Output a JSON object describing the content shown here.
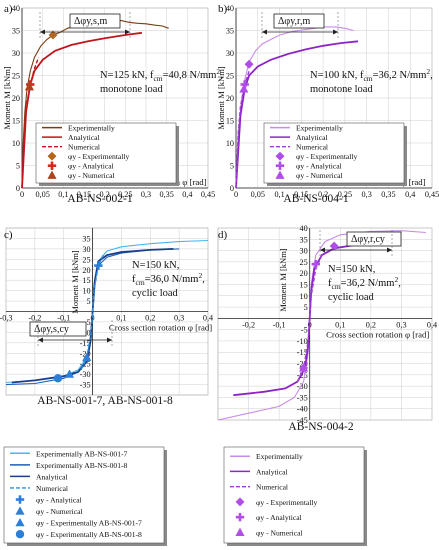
{
  "figure": {
    "panels": [
      {
        "letter": "a)",
        "caption": "AB-NS-002-1",
        "ylabel": "Moment M [kNm]",
        "xlabel": "Cross section rotation φ [rad]",
        "delta_label": "Δφy,s,m",
        "annotation": [
          "N=125 kN, f",
          "cm",
          "=40,8 N/mm",
          "2",
          ",",
          "monotone load"
        ]
      },
      {
        "letter": "b)",
        "caption": "AB-NS-004-1",
        "ylabel": "Moment M [kNm]",
        "xlabel": "Cross section rotation φ [rad]",
        "delta_label": "Δφy,r,m",
        "annotation": [
          "N=100 kN, f",
          "cm",
          "=36,2 N/mm",
          "2",
          ",",
          "monotone load"
        ]
      },
      {
        "letter": "c)",
        "caption": "AB-NS-001-7, AB-NS-001-8",
        "ylabel": "Moment M [kNm]",
        "xlabel": "Cross section rotation φ [rad]",
        "delta_label": "Δφy,s,cy",
        "annotation": [
          "N=150 kN,",
          "f",
          "cm",
          "=36,0 N/mm",
          "2",
          ",",
          "cyclic load"
        ]
      },
      {
        "letter": "d)",
        "caption": "AB-NS-004-2",
        "ylabel": "Moment M [kNm]",
        "xlabel": "Cross section rotation φ [rad]",
        "delta_label": "Δφy,r,cy",
        "annotation": [
          "N=150 kN,",
          "f",
          "cm",
          "=36,2 N/mm",
          "2",
          ",",
          "cyclic load"
        ]
      }
    ],
    "legends": {
      "a": [
        "Experimentally",
        "Analytical",
        "Numerical",
        "φy - Experimentally",
        "φy - Analytical",
        "φy - Numerical"
      ],
      "b": [
        "Experimentally",
        "Analytical",
        "Numerical",
        "φy - Experimentally",
        "φy - Analytical",
        "φy - Numerical"
      ],
      "c": [
        "Experimentally AB-NS-001-7",
        "Experimentally AB-NS-001-8",
        "Analytical",
        "Numerical",
        "φy - Analytical",
        "φy - Numerical",
        "φy - Experimentally AB-NS-001-7",
        "φy - Experimentally AB-NS-001-8"
      ],
      "d": [
        "Experimentally",
        "Analytical",
        "Numerical",
        "φy - Experimentally",
        "φy - Analytical",
        "φy - Numerical"
      ]
    }
  },
  "chart_data": [
    {
      "type": "line",
      "panel": "a",
      "xlim": [
        0,
        0.45
      ],
      "ylim": [
        0,
        40
      ],
      "xticks": [
        0,
        0.05,
        0.1,
        0.15,
        0.2,
        0.25,
        0.3,
        0.35,
        0.4,
        0.45
      ],
      "xtick_labels": [
        "0",
        "0,05",
        "0,1",
        "0,15",
        "0,2",
        "0,25",
        "0,3",
        "0,35",
        "0,4",
        "0,45"
      ],
      "yticks": [
        0,
        5,
        10,
        15,
        20,
        25,
        30,
        35,
        40
      ],
      "ytick_labels": [
        "0",
        "5",
        "10",
        "15",
        "20",
        "25",
        "30",
        "35",
        "40"
      ],
      "grid": true,
      "colors": {
        "experimental": "#7b3b12",
        "analytical": "#c0161b",
        "numerical": "#c0161b",
        "marker_exp": "#b5651d",
        "marker_ana": "#d42a1c",
        "marker_num": "#a8471b"
      },
      "series": [
        {
          "name": "Experimentally",
          "style": "solid",
          "x": [
            0,
            0.003,
            0.007,
            0.012,
            0.02,
            0.03,
            0.045,
            0.06,
            0.075,
            0.09,
            0.11,
            0.13,
            0.15,
            0.17,
            0.2,
            0.22,
            0.24,
            0.26,
            0.28,
            0.3,
            0.32,
            0.34,
            0.355
          ],
          "y": [
            0,
            10,
            17,
            22,
            26,
            29,
            31.5,
            33,
            34,
            34.5,
            35.5,
            36,
            36.5,
            36.8,
            37,
            37.3,
            37.2,
            36.8,
            36.6,
            36.5,
            36.2,
            36,
            35.5
          ]
        },
        {
          "name": "Analytical",
          "style": "solid",
          "x": [
            0,
            0.01,
            0.02,
            0.03,
            0.05,
            0.08,
            0.12,
            0.16,
            0.2,
            0.25,
            0.29
          ],
          "y": [
            0,
            17,
            23,
            26,
            28.5,
            30.5,
            31.8,
            32.6,
            33.3,
            34,
            34.5
          ]
        },
        {
          "name": "Numerical",
          "style": "dashed",
          "x": [
            0,
            0.005,
            0.01,
            0.02,
            0.03,
            0.04
          ],
          "y": [
            0,
            12,
            18,
            23,
            26.5,
            29
          ]
        }
      ],
      "yield_points": [
        {
          "name": "φy - Experimentally",
          "marker": "diamond",
          "x": 0.075,
          "y": 34
        },
        {
          "name": "φy - Analytical",
          "marker": "cross",
          "x": 0.02,
          "y": 23
        },
        {
          "name": "φy - Numerical",
          "marker": "triangle",
          "x": 0.018,
          "y": 22.5
        }
      ]
    },
    {
      "type": "line",
      "panel": "b",
      "xlim": [
        0,
        0.45
      ],
      "ylim": [
        0,
        40
      ],
      "xticks": [
        0,
        0.05,
        0.1,
        0.15,
        0.2,
        0.25,
        0.3,
        0.35,
        0.4,
        0.45
      ],
      "xtick_labels": [
        "0",
        "0,05",
        "0,1",
        "0,15",
        "0,2",
        "0,25",
        "0,3",
        "0,35",
        "0,4",
        "0,45"
      ],
      "yticks": [
        0,
        5,
        10,
        15,
        20,
        25,
        30,
        35,
        40
      ],
      "ytick_labels": [
        "0",
        "5",
        "10",
        "15",
        "20",
        "25",
        "30",
        "35",
        "40"
      ],
      "grid": true,
      "colors": {
        "experimental": "#c98bea",
        "analytical": "#8e24c8",
        "numerical": "#9c3fd6",
        "markers": "#b14de8"
      },
      "series": [
        {
          "name": "Experimentally",
          "style": "solid",
          "x": [
            0,
            0.005,
            0.012,
            0.02,
            0.03,
            0.045,
            0.06,
            0.08,
            0.1,
            0.13,
            0.16,
            0.2,
            0.23,
            0.25,
            0.27
          ],
          "y": [
            0,
            12,
            19,
            24,
            28,
            30.5,
            32,
            33,
            34,
            34.8,
            35.2,
            35.8,
            35.8,
            35.5,
            35
          ]
        },
        {
          "name": "Analytical",
          "style": "solid",
          "x": [
            0,
            0.01,
            0.02,
            0.03,
            0.05,
            0.08,
            0.12,
            0.16,
            0.2,
            0.24,
            0.28
          ],
          "y": [
            0,
            16,
            22,
            25,
            27,
            28.5,
            29.8,
            30.8,
            31.6,
            32.2,
            32.6
          ]
        },
        {
          "name": "Numerical",
          "style": "dashed",
          "x": [
            0,
            0.005,
            0.01,
            0.02,
            0.03
          ],
          "y": [
            0,
            12,
            18,
            23,
            26
          ]
        }
      ],
      "yield_points": [
        {
          "name": "φy - Experimentally",
          "marker": "diamond",
          "x": 0.03,
          "y": 27.5
        },
        {
          "name": "φy - Analytical",
          "marker": "cross",
          "x": 0.02,
          "y": 23
        },
        {
          "name": "φy - Numerical",
          "marker": "triangle",
          "x": 0.018,
          "y": 22
        }
      ]
    },
    {
      "type": "line",
      "panel": "c",
      "xlim": [
        -0.3,
        0.4
      ],
      "ylim": [
        -40,
        40
      ],
      "xticks": [
        -0.3,
        -0.2,
        -0.1,
        0,
        0.1,
        0.2,
        0.3,
        0.4
      ],
      "xtick_labels": [
        "-0,3",
        "-0,2",
        "-0,1",
        "0",
        "0,1",
        "0,2",
        "0,3",
        "0,4"
      ],
      "yticks": [
        -35,
        -30,
        -25,
        -20,
        -15,
        -10,
        -5,
        5,
        10,
        15,
        20,
        25,
        30,
        35
      ],
      "ytick_labels": [
        "-35",
        "-30",
        "-25",
        "-20",
        "-15",
        "-10",
        "-5",
        "5",
        "10",
        "15",
        "20",
        "25",
        "30",
        "35"
      ],
      "grid": true,
      "colors": {
        "experimental_7": "#4ab7ea",
        "experimental_8": "#1f5fb8",
        "analytical": "#1c3f8a",
        "numerical": "#2f8fd8",
        "markers": "#2c7fd6"
      },
      "series": [
        {
          "name": "Experimentally AB-NS-001-7",
          "style": "solid",
          "x": [
            -0.3,
            -0.2,
            -0.1,
            -0.05,
            -0.02,
            -0.005,
            0,
            0.005,
            0.02,
            0.05,
            0.1,
            0.2,
            0.3,
            0.4
          ],
          "y": [
            -34,
            -33,
            -31,
            -28,
            -22,
            -12,
            0,
            12,
            24,
            29,
            31,
            32.5,
            33.5,
            34
          ]
        },
        {
          "name": "Experimentally AB-NS-001-8",
          "style": "solid",
          "x": [
            -0.3,
            -0.2,
            -0.1,
            -0.05,
            -0.02,
            -0.005,
            0,
            0.005,
            0.02,
            0.05,
            0.1,
            0.2,
            0.3
          ],
          "y": [
            -35,
            -34.5,
            -32,
            -29,
            -23,
            -13,
            0,
            13,
            22,
            26,
            28,
            29.5,
            30
          ]
        },
        {
          "name": "Analytical",
          "style": "solid",
          "x": [
            -0.28,
            -0.2,
            -0.1,
            -0.05,
            -0.02,
            -0.008,
            0,
            0.008,
            0.02,
            0.05,
            0.1,
            0.2,
            0.28
          ],
          "y": [
            -34,
            -33,
            -31,
            -29,
            -24,
            -15,
            0,
            15,
            24,
            27,
            28.5,
            29.5,
            30
          ]
        },
        {
          "name": "Numerical",
          "style": "dashed",
          "x": [
            -0.04,
            -0.02,
            -0.005,
            0,
            0.005,
            0.02,
            0.04
          ],
          "y": [
            -28,
            -22,
            -10,
            0,
            10,
            22,
            28
          ]
        }
      ],
      "yield_points": [
        {
          "name": "φy - Analytical",
          "marker": "cross",
          "x": 0.02,
          "y": 22
        },
        {
          "name": "φy - Numerical",
          "marker": "triangle",
          "x": -0.02,
          "y": -22
        },
        {
          "name": "φy - Experimentally AB-NS-001-7",
          "marker": "triangle",
          "x": -0.08,
          "y": -30
        },
        {
          "name": "φy - Experimentally AB-NS-001-8",
          "marker": "circle",
          "x": -0.12,
          "y": -32
        }
      ]
    },
    {
      "type": "line",
      "panel": "d",
      "xlim": [
        -0.3,
        0.4
      ],
      "ylim": [
        -45,
        40
      ],
      "xticks": [
        -0.2,
        -0.1,
        0,
        0.1,
        0.2,
        0.3,
        0.4
      ],
      "xtick_labels": [
        "-0,2",
        "-0,1",
        "0",
        "0,1",
        "0,2",
        "0,3",
        "0,4"
      ],
      "yticks": [
        -45,
        -40,
        -35,
        -30,
        -25,
        -20,
        -15,
        -10,
        -5,
        5,
        10,
        15,
        20,
        25,
        30,
        35,
        40
      ],
      "ytick_labels": [
        "-45",
        "-40",
        "-35",
        "-30",
        "-25",
        "-20",
        "-15",
        "-10",
        "-5",
        "5",
        "10",
        "15",
        "20",
        "25",
        "30",
        "35",
        "40"
      ],
      "grid": true,
      "colors": {
        "experimental": "#c98bea",
        "analytical": "#8e24c8",
        "numerical": "#9c3fd6",
        "markers": "#b14de8"
      },
      "series": [
        {
          "name": "Experimentally",
          "style": "solid",
          "x": [
            -0.3,
            -0.2,
            -0.1,
            -0.05,
            -0.02,
            -0.005,
            0,
            0.005,
            0.02,
            0.05,
            0.1,
            0.2,
            0.3,
            0.38
          ],
          "y": [
            -45,
            -42,
            -39,
            -35,
            -28,
            -15,
            0,
            15,
            28,
            34,
            37,
            38.5,
            38.8,
            38
          ]
        },
        {
          "name": "Analytical",
          "style": "solid",
          "x": [
            -0.25,
            -0.15,
            -0.08,
            -0.04,
            -0.015,
            -0.005,
            0,
            0.005,
            0.015,
            0.04,
            0.08,
            0.15,
            0.25
          ],
          "y": [
            -34,
            -32.5,
            -31,
            -28,
            -22,
            -12,
            0,
            12,
            22,
            28,
            31,
            32.5,
            34
          ]
        },
        {
          "name": "Numerical",
          "style": "dashed",
          "x": [
            -0.04,
            -0.02,
            -0.005,
            0,
            0.005,
            0.02,
            0.04
          ],
          "y": [
            -28,
            -22,
            -10,
            0,
            10,
            22,
            28
          ]
        }
      ],
      "yield_points": [
        {
          "name": "φy - Experimentally",
          "marker": "diamond",
          "x": 0.08,
          "y": 32
        },
        {
          "name": "φy - Analytical",
          "marker": "cross",
          "x": 0.02,
          "y": 24
        },
        {
          "name": "φy - Numerical",
          "marker": "triangle",
          "x": -0.02,
          "y": -22
        },
        {
          "name": "φy - Experimentally",
          "marker": "diamond",
          "x": -0.02,
          "y": -22
        }
      ]
    }
  ]
}
